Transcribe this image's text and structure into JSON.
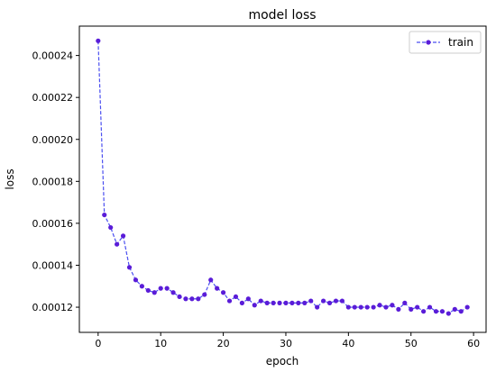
{
  "chart_data": {
    "type": "line",
    "title": "model loss",
    "xlabel": "epoch",
    "ylabel": "loss",
    "xlim": [
      -3,
      62
    ],
    "ylim": [
      0.000108,
      0.000254
    ],
    "xticks": [
      0,
      10,
      20,
      30,
      40,
      50,
      60
    ],
    "yticks": [
      0.00012,
      0.00014,
      0.00016,
      0.00018,
      0.0002,
      0.00022,
      0.00024
    ],
    "ytick_labels": [
      "0.00012",
      "0.00014",
      "0.00016",
      "0.00018",
      "0.00020",
      "0.00022",
      "0.00024"
    ],
    "grid": false,
    "legend_position": "top-right",
    "series": [
      {
        "name": "train",
        "color": "#5a1cd8",
        "line_color": "#4b4ff0",
        "line_style": "dashed",
        "marker": "circle",
        "x": [
          0,
          1,
          2,
          3,
          4,
          5,
          6,
          7,
          8,
          9,
          10,
          11,
          12,
          13,
          14,
          15,
          16,
          17,
          18,
          19,
          20,
          21,
          22,
          23,
          24,
          25,
          26,
          27,
          28,
          29,
          30,
          31,
          32,
          33,
          34,
          35,
          36,
          37,
          38,
          39,
          40,
          41,
          42,
          43,
          44,
          45,
          46,
          47,
          48,
          49,
          50,
          51,
          52,
          53,
          54,
          55,
          56,
          57,
          58,
          59
        ],
        "y": [
          0.000247,
          0.000164,
          0.000158,
          0.00015,
          0.000154,
          0.000139,
          0.000133,
          0.00013,
          0.000128,
          0.000127,
          0.000129,
          0.000129,
          0.000127,
          0.000125,
          0.000124,
          0.000124,
          0.000124,
          0.000126,
          0.000133,
          0.000129,
          0.000127,
          0.000123,
          0.000125,
          0.000122,
          0.000124,
          0.000121,
          0.000123,
          0.000122,
          0.000122,
          0.000122,
          0.000122,
          0.000122,
          0.000122,
          0.000122,
          0.000123,
          0.00012,
          0.000123,
          0.000122,
          0.000123,
          0.000123,
          0.00012,
          0.00012,
          0.00012,
          0.00012,
          0.00012,
          0.000121,
          0.00012,
          0.000121,
          0.000119,
          0.000122,
          0.000119,
          0.00012,
          0.000118,
          0.00012,
          0.000118,
          0.000118,
          0.000117,
          0.000119,
          0.000118,
          0.00012
        ]
      }
    ]
  }
}
